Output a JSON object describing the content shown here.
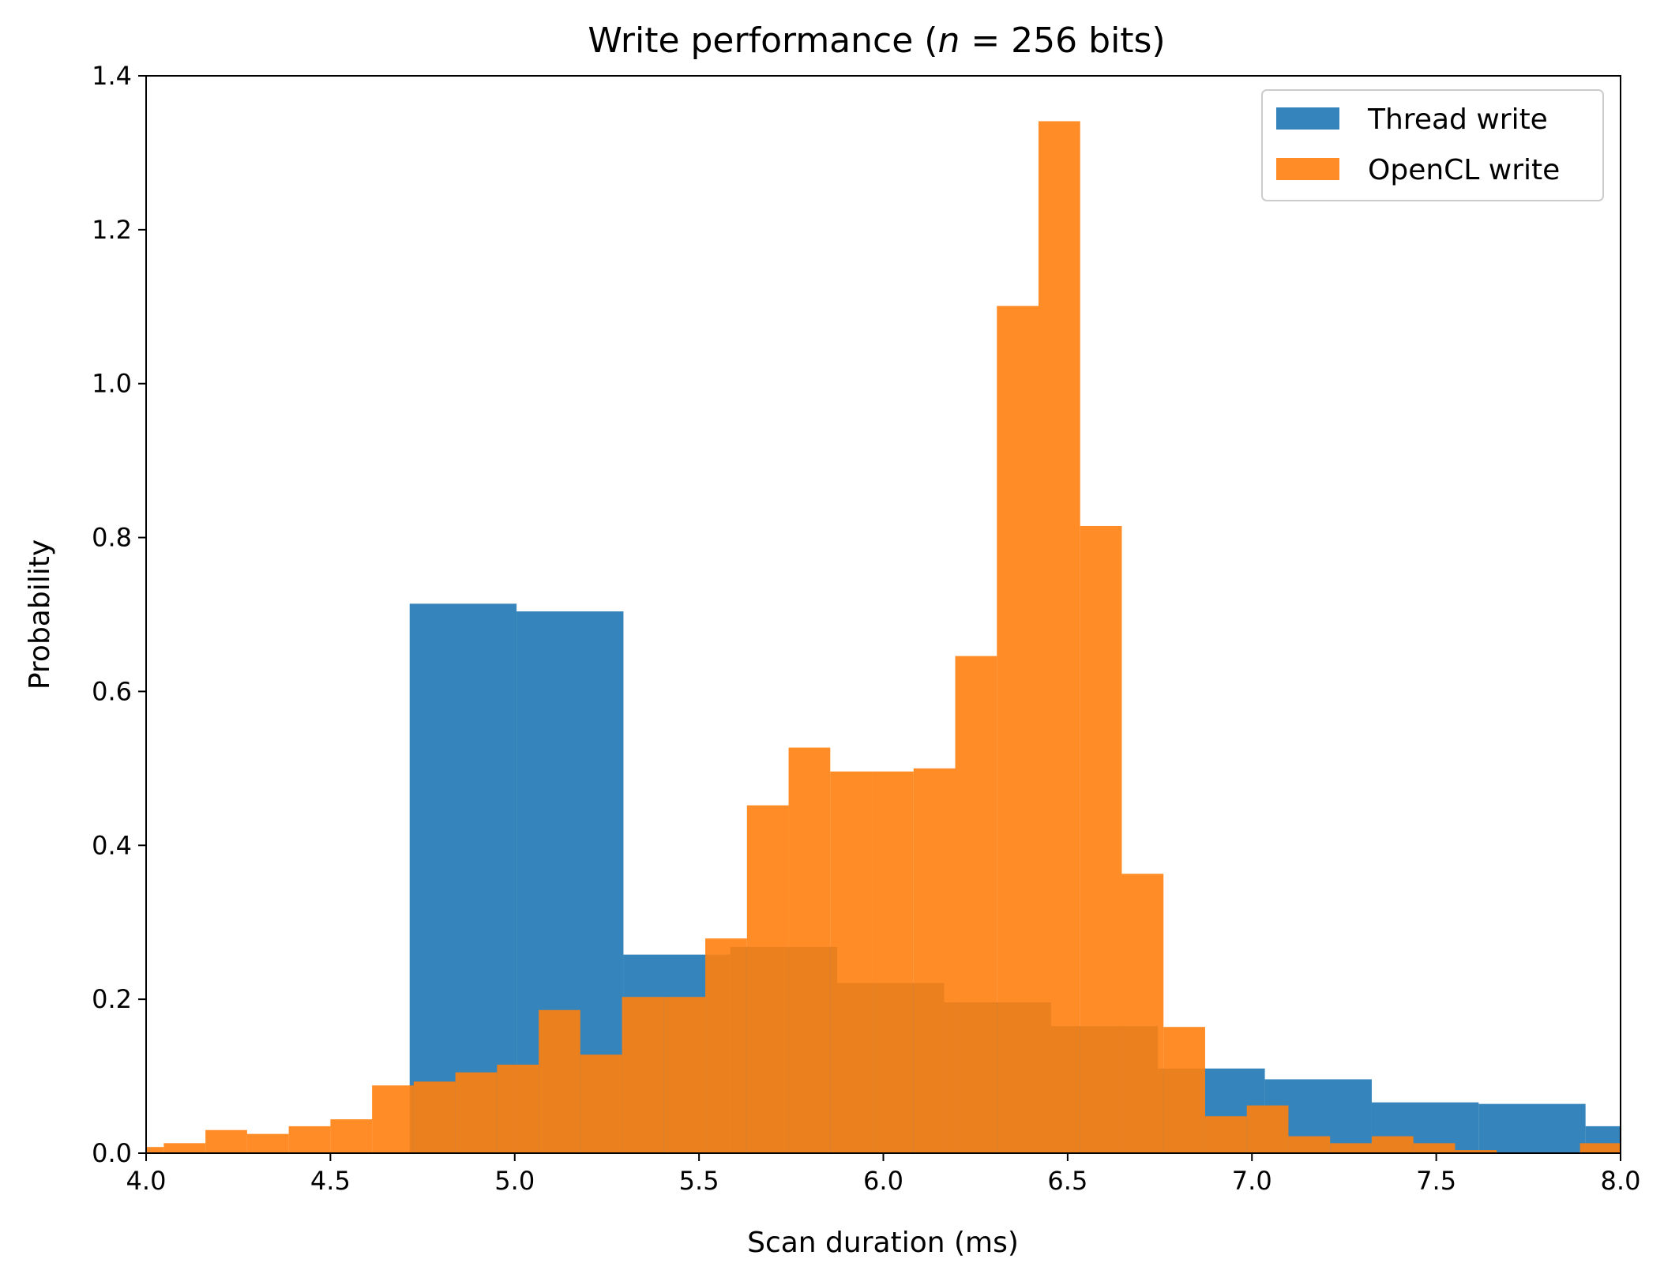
{
  "chart_data": {
    "type": "bar",
    "title": "Write performance (n = 256 bits)",
    "xlabel": "Scan duration (ms)",
    "ylabel": "Probability",
    "xlim": [
      4.0,
      8.0
    ],
    "ylim": [
      0.0,
      1.4
    ],
    "xticks": [
      4.0,
      4.5,
      5.0,
      5.5,
      6.0,
      6.5,
      7.0,
      7.5,
      8.0
    ],
    "yticks": [
      0.0,
      0.2,
      0.4,
      0.6,
      0.8,
      1.0,
      1.2,
      1.4
    ],
    "xtick_labels": [
      "4.0",
      "4.5",
      "5.0",
      "5.5",
      "6.0",
      "6.5",
      "7.0",
      "7.5",
      "8.0"
    ],
    "ytick_labels": [
      "0.0",
      "0.2",
      "0.4",
      "0.6",
      "0.8",
      "1.0",
      "1.2",
      "1.4"
    ],
    "grid": false,
    "legend_position": "top-right",
    "colors": {
      "thread": "#1f77b4",
      "opencl": "#ff7f0e"
    },
    "series": [
      {
        "name": "Thread write",
        "color": "#1f77b4",
        "opacity": 0.9,
        "bins": [
          {
            "x0": 4.715,
            "x1": 5.005,
            "value": 0.714
          },
          {
            "x0": 5.005,
            "x1": 5.295,
            "value": 0.704
          },
          {
            "x0": 5.295,
            "x1": 5.585,
            "value": 0.258
          },
          {
            "x0": 5.585,
            "x1": 5.875,
            "value": 0.268
          },
          {
            "x0": 5.875,
            "x1": 6.165,
            "value": 0.221
          },
          {
            "x0": 6.165,
            "x1": 6.455,
            "value": 0.196
          },
          {
            "x0": 6.455,
            "x1": 6.745,
            "value": 0.165
          },
          {
            "x0": 6.745,
            "x1": 7.035,
            "value": 0.11
          },
          {
            "x0": 7.035,
            "x1": 7.325,
            "value": 0.096
          },
          {
            "x0": 7.325,
            "x1": 7.615,
            "value": 0.066
          },
          {
            "x0": 7.615,
            "x1": 7.905,
            "value": 0.064
          },
          {
            "x0": 7.905,
            "x1": 8.195,
            "value": 0.035
          }
        ]
      },
      {
        "name": "OpenCL write",
        "color": "#ff7f0e",
        "opacity": 0.9,
        "bins": [
          {
            "x0": 3.935,
            "x1": 4.048,
            "value": 0.008
          },
          {
            "x0": 4.048,
            "x1": 4.161,
            "value": 0.013
          },
          {
            "x0": 4.161,
            "x1": 4.274,
            "value": 0.03
          },
          {
            "x0": 4.274,
            "x1": 4.387,
            "value": 0.025
          },
          {
            "x0": 4.387,
            "x1": 4.5,
            "value": 0.035
          },
          {
            "x0": 4.5,
            "x1": 4.613,
            "value": 0.044
          },
          {
            "x0": 4.613,
            "x1": 4.726,
            "value": 0.088
          },
          {
            "x0": 4.726,
            "x1": 4.839,
            "value": 0.093
          },
          {
            "x0": 4.839,
            "x1": 4.952,
            "value": 0.105
          },
          {
            "x0": 4.952,
            "x1": 5.065,
            "value": 0.115
          },
          {
            "x0": 5.065,
            "x1": 5.178,
            "value": 0.186
          },
          {
            "x0": 5.178,
            "x1": 5.291,
            "value": 0.128
          },
          {
            "x0": 5.291,
            "x1": 5.404,
            "value": 0.203
          },
          {
            "x0": 5.404,
            "x1": 5.517,
            "value": 0.203
          },
          {
            "x0": 5.517,
            "x1": 5.63,
            "value": 0.279
          },
          {
            "x0": 5.63,
            "x1": 5.743,
            "value": 0.452
          },
          {
            "x0": 5.743,
            "x1": 5.856,
            "value": 0.527
          },
          {
            "x0": 5.856,
            "x1": 5.969,
            "value": 0.496
          },
          {
            "x0": 5.969,
            "x1": 6.082,
            "value": 0.496
          },
          {
            "x0": 6.082,
            "x1": 6.195,
            "value": 0.5
          },
          {
            "x0": 6.195,
            "x1": 6.308,
            "value": 0.646
          },
          {
            "x0": 6.308,
            "x1": 6.421,
            "value": 1.101
          },
          {
            "x0": 6.421,
            "x1": 6.534,
            "value": 1.341
          },
          {
            "x0": 6.534,
            "x1": 6.647,
            "value": 0.815
          },
          {
            "x0": 6.647,
            "x1": 6.76,
            "value": 0.363
          },
          {
            "x0": 6.76,
            "x1": 6.873,
            "value": 0.164
          },
          {
            "x0": 6.873,
            "x1": 6.986,
            "value": 0.048
          },
          {
            "x0": 6.986,
            "x1": 7.099,
            "value": 0.062
          },
          {
            "x0": 7.099,
            "x1": 7.212,
            "value": 0.022
          },
          {
            "x0": 7.212,
            "x1": 7.325,
            "value": 0.013
          },
          {
            "x0": 7.325,
            "x1": 7.438,
            "value": 0.022
          },
          {
            "x0": 7.438,
            "x1": 7.551,
            "value": 0.013
          },
          {
            "x0": 7.551,
            "x1": 7.664,
            "value": 0.004
          },
          {
            "x0": 7.664,
            "x1": 7.777,
            "value": 0.0
          },
          {
            "x0": 7.777,
            "x1": 7.89,
            "value": 0.0
          },
          {
            "x0": 7.89,
            "x1": 8.003,
            "value": 0.013
          }
        ]
      }
    ]
  }
}
